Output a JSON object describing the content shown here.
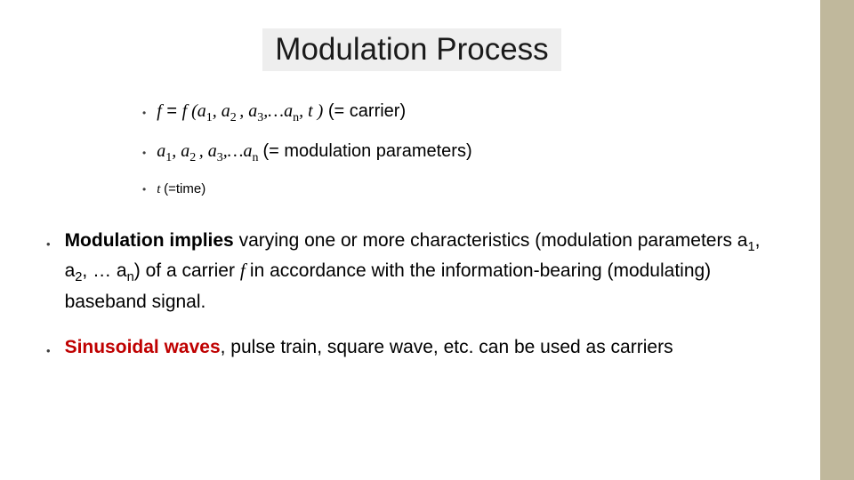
{
  "colors": {
    "sidebar": "#c0b89c",
    "title_bg": "#eeeeee",
    "title_text": "#1a1a1a",
    "body_text": "#000000",
    "red": "#bf0000",
    "bullet": "#404040"
  },
  "title": "Modulation Process",
  "formula_bullets": [
    {
      "lhs_italic": "f",
      "equals": "  =  ",
      "rhs_italic_f": "f ",
      "open": "(",
      "args": "a₁, a₂, a₃,…aₙ, t ",
      "close": ")",
      "suffix": " (= carrier)",
      "size": "normal"
    },
    {
      "args": "a₁, a₂, a₃,…aₙ ",
      "suffix": "(= modulation parameters)",
      "size": "normal"
    },
    {
      "t_var": "t ",
      "suffix": "(=time)",
      "size": "small"
    }
  ],
  "main_bullets": [
    {
      "bold_lead": "Modulation implies",
      "rest_1": " varying one or more  characteristics (modulation parameters a",
      "s1": "1",
      "m1": ", a",
      "s2": "2",
      "m2": ", … a",
      "s3": "n",
      "rest_2": ") of  a carrier ",
      "ital_f": "f ",
      "rest_3": "in accordance with the information-bearing  (modulating) baseband signal."
    },
    {
      "red_lead": "Sinusoidal waves",
      "rest": ", pulse train, square wave, etc. can be  used as carriers"
    }
  ]
}
